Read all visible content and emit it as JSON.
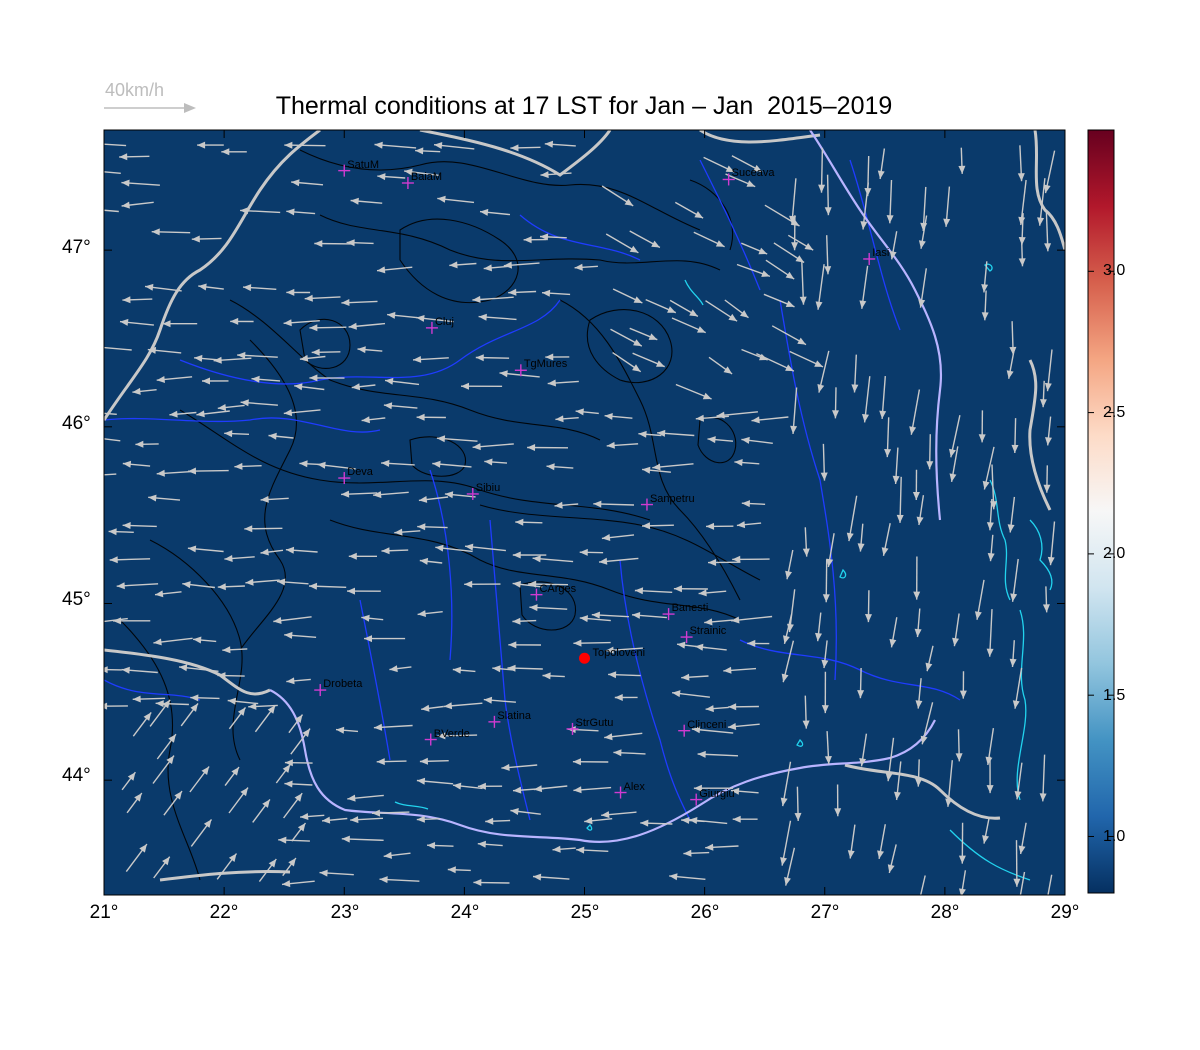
{
  "title": "Thermal conditions at 17 LST for Jan – Jan  2015–2019",
  "scale": {
    "label": "40km/h",
    "color": "#bdbdbd"
  },
  "map": {
    "extent": {
      "lon": [
        21,
        29
      ],
      "lat": [
        43.35,
        47.68
      ]
    },
    "background": "#0a3a6b",
    "x_ticks": [
      "21°",
      "22°",
      "23°",
      "24°",
      "25°",
      "26°",
      "27°",
      "28°",
      "29°"
    ],
    "y_ticks": [
      "44°",
      "45°",
      "46°",
      "47°"
    ],
    "colors": {
      "contour": "#000000",
      "river": "#1f3cff",
      "lake": "#22d3ee",
      "border": "#c8c8c8",
      "danube": "#b9b4ff",
      "arrow": "#c9c9c9",
      "city_marker": "#d13bd1",
      "site": "#ff0000"
    },
    "cities": [
      {
        "name": "SatuM",
        "lon": 23.0,
        "lat": 47.45
      },
      {
        "name": "BaiaM",
        "lon": 23.53,
        "lat": 47.38
      },
      {
        "name": "Suceava",
        "lon": 26.2,
        "lat": 47.4
      },
      {
        "name": "Iasi",
        "lon": 27.37,
        "lat": 46.95
      },
      {
        "name": "Cluj",
        "lon": 23.73,
        "lat": 46.56
      },
      {
        "name": "TgMures",
        "lon": 24.47,
        "lat": 46.32
      },
      {
        "name": "Deva",
        "lon": 23.0,
        "lat": 45.71
      },
      {
        "name": "Sibiu",
        "lon": 24.07,
        "lat": 45.62
      },
      {
        "name": "Sanpetru",
        "lon": 25.52,
        "lat": 45.56
      },
      {
        "name": "CArges",
        "lon": 24.6,
        "lat": 45.05
      },
      {
        "name": "Banesti",
        "lon": 25.7,
        "lat": 44.94
      },
      {
        "name": "Strainic",
        "lon": 25.85,
        "lat": 44.81
      },
      {
        "name": "Drobeta",
        "lon": 22.8,
        "lat": 44.51
      },
      {
        "name": "Slatina",
        "lon": 24.25,
        "lat": 44.33
      },
      {
        "name": "StrGutu",
        "lon": 24.9,
        "lat": 44.29
      },
      {
        "name": "Clinceni",
        "lon": 25.83,
        "lat": 44.28
      },
      {
        "name": "BVerde",
        "lon": 23.72,
        "lat": 44.23
      },
      {
        "name": "Alex",
        "lon": 25.3,
        "lat": 43.93
      },
      {
        "name": "Giurgiu",
        "lon": 25.93,
        "lat": 43.89
      }
    ],
    "site": {
      "name": "Topoloveni",
      "lon": 25.0,
      "lat": 44.69
    }
  },
  "colorbar": {
    "ticks": [
      "1.0",
      "1.5",
      "2.0",
      "2.5",
      "3.0"
    ],
    "tick_values": [
      1.0,
      1.5,
      2.0,
      2.5,
      3.0
    ],
    "range": [
      0.8,
      3.5
    ],
    "colors": [
      "#053061",
      "#2166ac",
      "#4393c3",
      "#92c5de",
      "#d1e5f0",
      "#f7f7f7",
      "#fddbc7",
      "#f4a582",
      "#d6604d",
      "#b2182b",
      "#67001f"
    ]
  }
}
